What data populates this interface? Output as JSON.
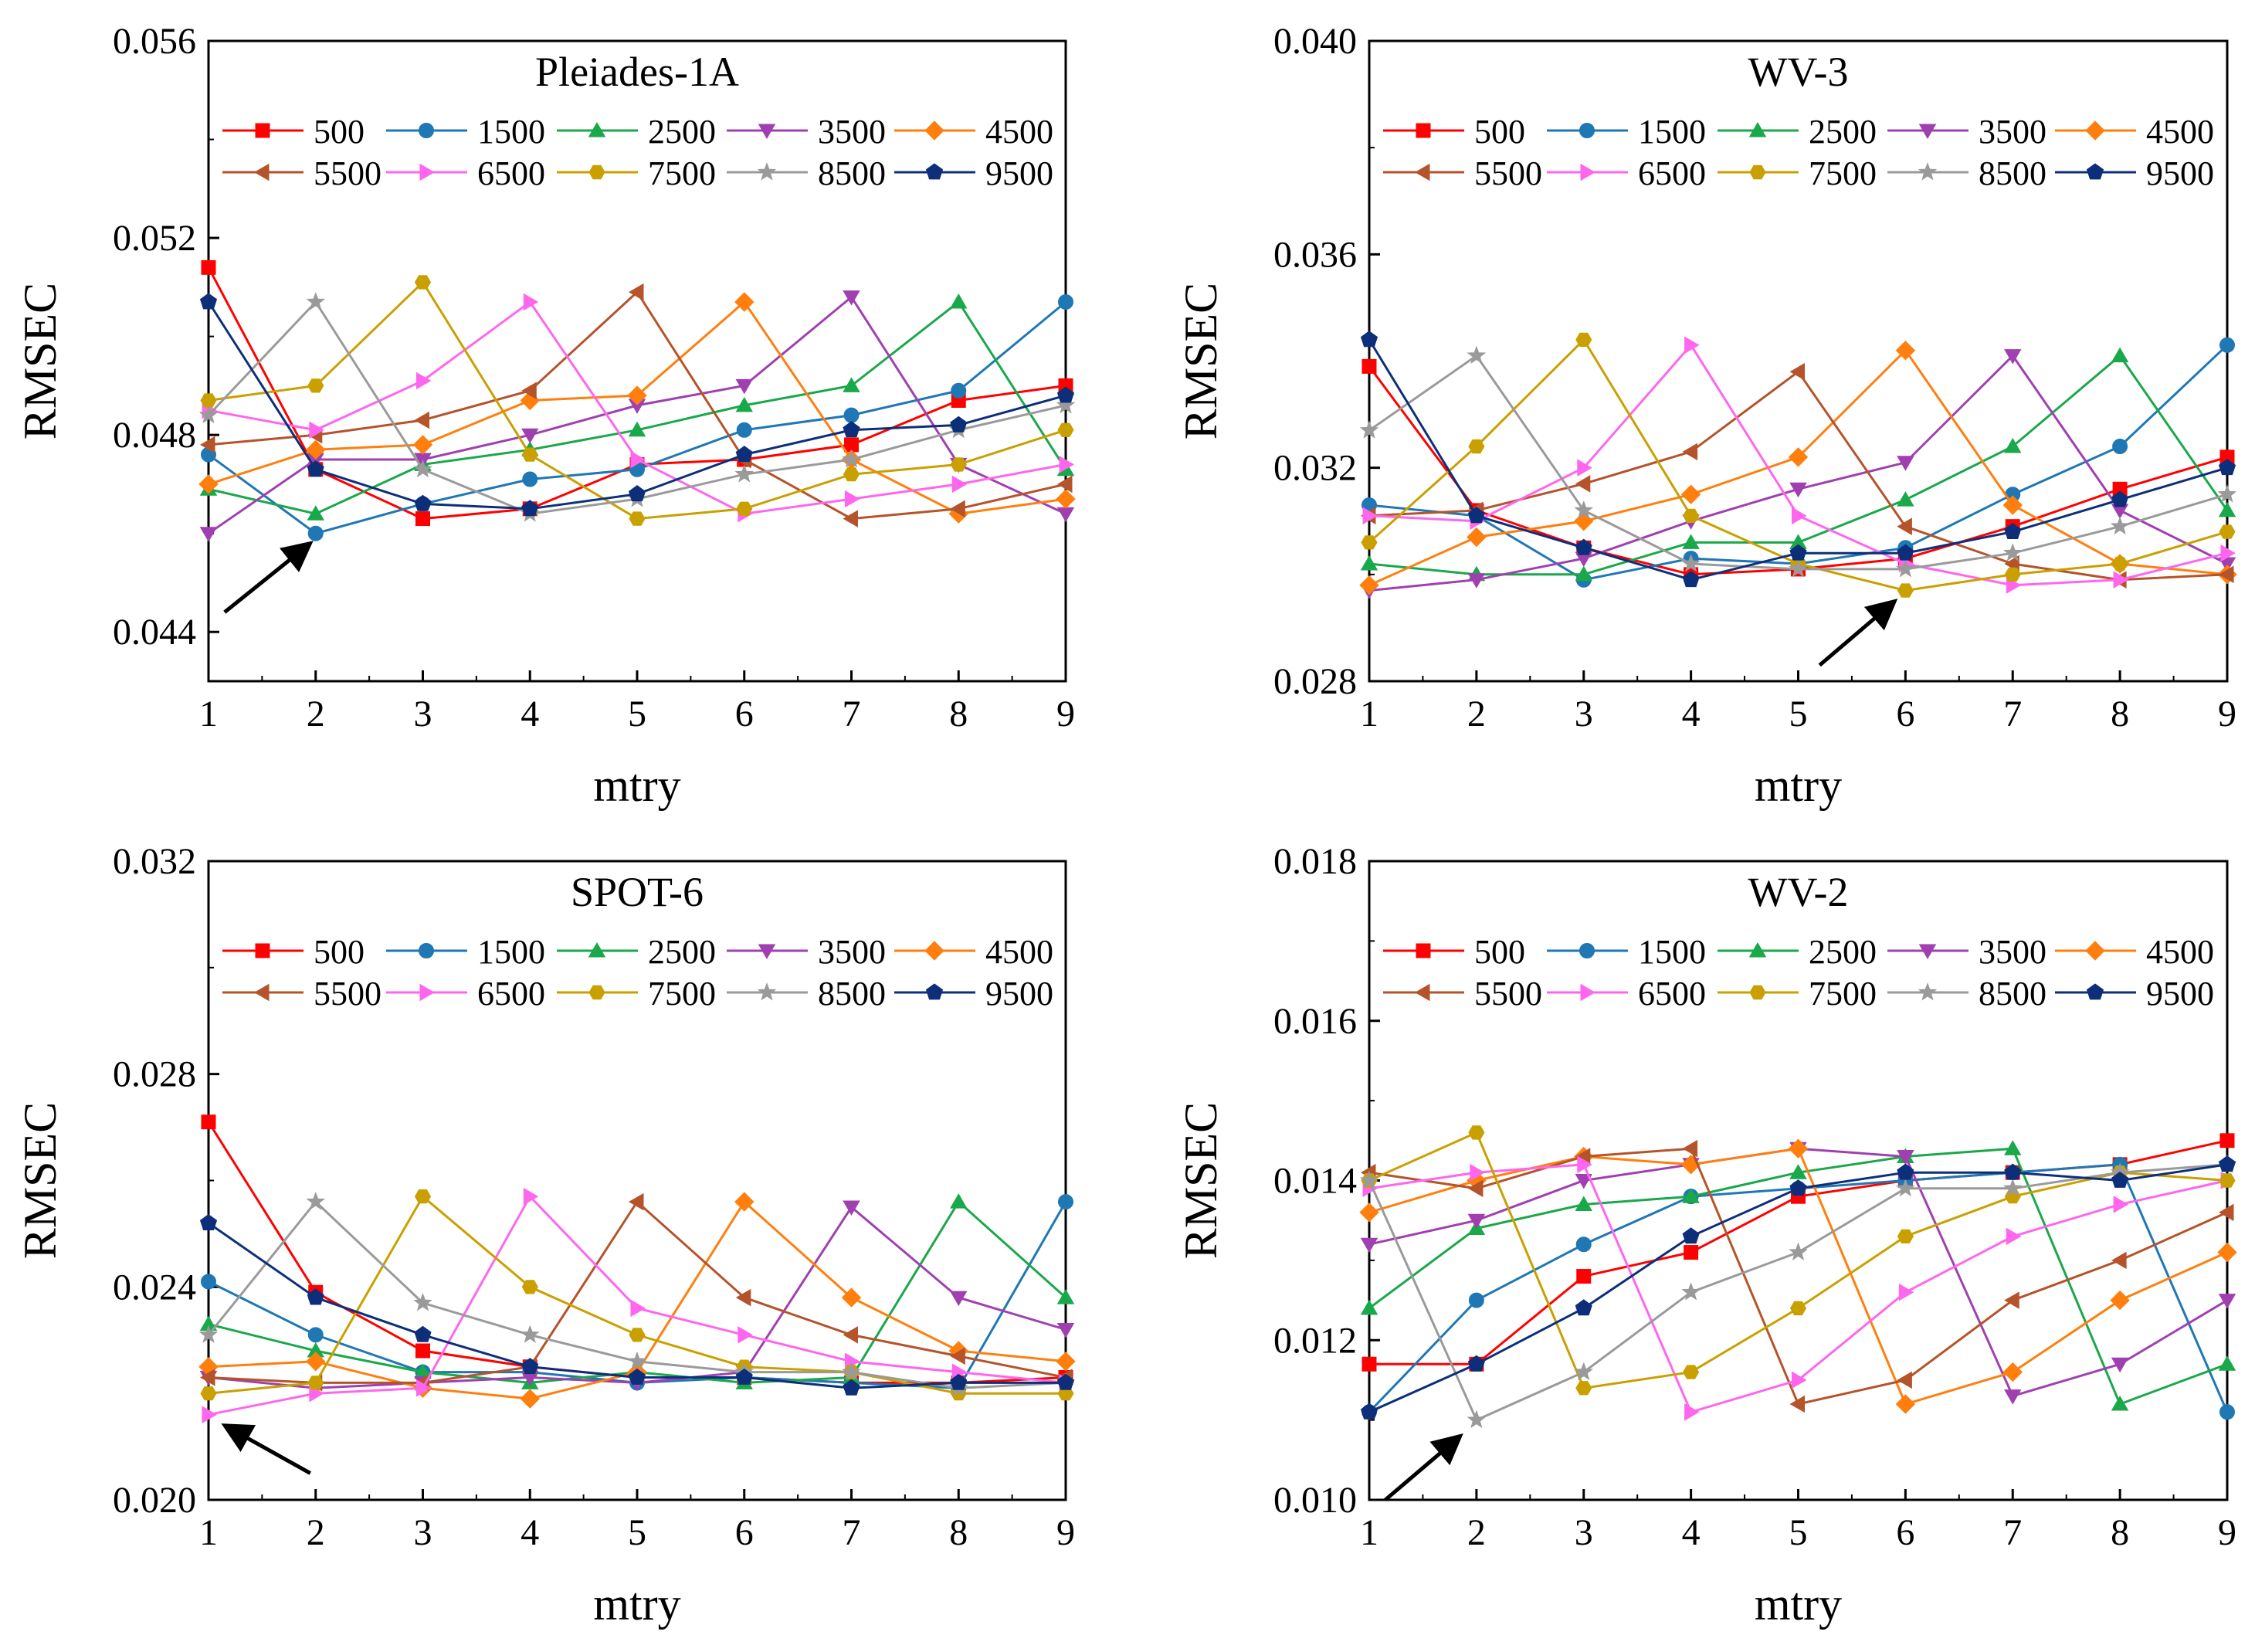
{
  "figure": {
    "legend_labels": [
      "500",
      "1500",
      "2500",
      "3500",
      "4500",
      "5500",
      "6500",
      "7500",
      "8500",
      "9500"
    ],
    "series_colors": [
      "#ff0000",
      "#1f77b4",
      "#19a84a",
      "#a040b0",
      "#ff7f0e",
      "#b5532a",
      "#ff66ee",
      "#c9a000",
      "#9a9a9a",
      "#0d2f7a"
    ],
    "series_markers": [
      "square",
      "circle",
      "triangle-up",
      "triangle-down",
      "diamond",
      "triangle-left",
      "triangle-right",
      "hexagon",
      "star",
      "pentagon"
    ],
    "arrow_color": "#000000"
  },
  "chart_data": [
    {
      "type": "line",
      "title": "Pleiades-1A",
      "xlabel": "mtry",
      "ylabel": "RMSEC",
      "x": [
        1,
        2,
        3,
        4,
        5,
        6,
        7,
        8,
        9
      ],
      "xlim": [
        1,
        9
      ],
      "ylim": [
        0.043,
        0.056
      ],
      "yticks": [
        0.044,
        0.048,
        0.052,
        0.056
      ],
      "ytick_labels": [
        "0.044",
        "0.048",
        "0.052",
        "0.056"
      ],
      "xtick_labels": [
        "1",
        "2",
        "3",
        "4",
        "5",
        "6",
        "7",
        "8",
        "9"
      ],
      "arrow": {
        "from": [
          1.15,
          0.0444
        ],
        "to": [
          1.95,
          0.0458
        ]
      },
      "series": [
        {
          "name": "500",
          "values": [
            0.0514,
            0.0473,
            0.0463,
            0.0465,
            0.0474,
            0.0475,
            0.0478,
            0.0487,
            0.049
          ]
        },
        {
          "name": "1500",
          "values": [
            0.0476,
            0.046,
            0.0466,
            0.0471,
            0.0473,
            0.0481,
            0.0484,
            0.0489,
            0.0507
          ]
        },
        {
          "name": "2500",
          "values": [
            0.0469,
            0.0464,
            0.0474,
            0.0477,
            0.0481,
            0.0486,
            0.049,
            0.0507,
            0.0473
          ]
        },
        {
          "name": "3500",
          "values": [
            0.046,
            0.0475,
            0.0475,
            0.048,
            0.0486,
            0.049,
            0.0508,
            0.0474,
            0.0464
          ]
        },
        {
          "name": "4500",
          "values": [
            0.047,
            0.0477,
            0.0478,
            0.0487,
            0.0488,
            0.0507,
            0.0475,
            0.0464,
            0.0467
          ]
        },
        {
          "name": "5500",
          "values": [
            0.0478,
            0.048,
            0.0483,
            0.0489,
            0.0509,
            0.0475,
            0.0463,
            0.0465,
            0.047
          ]
        },
        {
          "name": "6500",
          "values": [
            0.0485,
            0.0481,
            0.0491,
            0.0507,
            0.0475,
            0.0464,
            0.0467,
            0.047,
            0.0474
          ]
        },
        {
          "name": "7500",
          "values": [
            0.0487,
            0.049,
            0.0511,
            0.0476,
            0.0463,
            0.0465,
            0.0472,
            0.0474,
            0.0481
          ]
        },
        {
          "name": "8500",
          "values": [
            0.0484,
            0.0507,
            0.0473,
            0.0464,
            0.0467,
            0.0472,
            0.0475,
            0.0481,
            0.0486
          ]
        },
        {
          "name": "9500",
          "values": [
            0.0507,
            0.0473,
            0.0466,
            0.0465,
            0.0468,
            0.0476,
            0.0481,
            0.0482,
            0.0488
          ]
        }
      ]
    },
    {
      "type": "line",
      "title": "WV-3",
      "xlabel": "mtry",
      "ylabel": "RMSEC",
      "x": [
        1,
        2,
        3,
        4,
        5,
        6,
        7,
        8,
        9
      ],
      "xlim": [
        1,
        9
      ],
      "ylim": [
        0.028,
        0.04
      ],
      "yticks": [
        0.028,
        0.032,
        0.036,
        0.04
      ],
      "ytick_labels": [
        "0.028",
        "0.032",
        "0.036",
        "0.040"
      ],
      "xtick_labels": [
        "1",
        "2",
        "3",
        "4",
        "5",
        "6",
        "7",
        "8",
        "9"
      ],
      "arrow": {
        "from": [
          5.2,
          0.0283
        ],
        "to": [
          5.9,
          0.0295
        ]
      },
      "series": [
        {
          "name": "500",
          "values": [
            0.0339,
            0.0312,
            0.0305,
            0.03,
            0.0301,
            0.0303,
            0.0309,
            0.0316,
            0.0322
          ]
        },
        {
          "name": "1500",
          "values": [
            0.0313,
            0.0311,
            0.0299,
            0.0303,
            0.0302,
            0.0305,
            0.0315,
            0.0324,
            0.0343
          ]
        },
        {
          "name": "2500",
          "values": [
            0.0302,
            0.03,
            0.03,
            0.0306,
            0.0306,
            0.0314,
            0.0324,
            0.0341,
            0.0312
          ]
        },
        {
          "name": "3500",
          "values": [
            0.0297,
            0.0299,
            0.0303,
            0.031,
            0.0316,
            0.0321,
            0.0341,
            0.0312,
            0.0302
          ]
        },
        {
          "name": "4500",
          "values": [
            0.0298,
            0.0307,
            0.031,
            0.0315,
            0.0322,
            0.0342,
            0.0313,
            0.0302,
            0.03
          ]
        },
        {
          "name": "5500",
          "values": [
            0.0311,
            0.0312,
            0.0317,
            0.0323,
            0.0338,
            0.0309,
            0.0302,
            0.0299,
            0.03
          ]
        },
        {
          "name": "6500",
          "values": [
            0.0311,
            0.031,
            0.032,
            0.0343,
            0.0311,
            0.0302,
            0.0298,
            0.0299,
            0.0304
          ]
        },
        {
          "name": "7500",
          "values": [
            0.0306,
            0.0324,
            0.0344,
            0.0311,
            0.0302,
            0.0297,
            0.03,
            0.0302,
            0.0308
          ]
        },
        {
          "name": "8500",
          "values": [
            0.0327,
            0.0341,
            0.0312,
            0.0302,
            0.0301,
            0.0301,
            0.0304,
            0.0309,
            0.0315
          ]
        },
        {
          "name": "9500",
          "values": [
            0.0344,
            0.0311,
            0.0305,
            0.0299,
            0.0304,
            0.0304,
            0.0308,
            0.0314,
            0.032
          ]
        }
      ]
    },
    {
      "type": "line",
      "title": "SPOT-6",
      "xlabel": "mtry",
      "ylabel": "RMSEC",
      "x": [
        1,
        2,
        3,
        4,
        5,
        6,
        7,
        8,
        9
      ],
      "xlim": [
        1,
        9
      ],
      "ylim": [
        0.02,
        0.032
      ],
      "yticks": [
        0.02,
        0.024,
        0.028,
        0.032
      ],
      "ytick_labels": [
        "0.020",
        "0.024",
        "0.028",
        "0.032"
      ],
      "xtick_labels": [
        "1",
        "2",
        "3",
        "4",
        "5",
        "6",
        "7",
        "8",
        "9"
      ],
      "arrow": {
        "from": [
          1.95,
          0.0205
        ],
        "to": [
          1.15,
          0.0214
        ]
      },
      "series": [
        {
          "name": "500",
          "values": [
            0.0271,
            0.0239,
            0.0228,
            0.0225,
            0.0223,
            0.0223,
            0.0222,
            0.0222,
            0.0223
          ]
        },
        {
          "name": "1500",
          "values": [
            0.0241,
            0.0231,
            0.0224,
            0.0224,
            0.0222,
            0.0223,
            0.0222,
            0.0221,
            0.0256
          ]
        },
        {
          "name": "2500",
          "values": [
            0.0233,
            0.0228,
            0.0224,
            0.0222,
            0.0224,
            0.0222,
            0.0223,
            0.0256,
            0.0238
          ]
        },
        {
          "name": "3500",
          "values": [
            0.0223,
            0.0221,
            0.0222,
            0.0223,
            0.0222,
            0.0224,
            0.0255,
            0.0238,
            0.0232
          ]
        },
        {
          "name": "4500",
          "values": [
            0.0225,
            0.0226,
            0.0221,
            0.0219,
            0.0224,
            0.0256,
            0.0238,
            0.0228,
            0.0226
          ]
        },
        {
          "name": "5500",
          "values": [
            0.0223,
            0.0222,
            0.0222,
            0.0225,
            0.0256,
            0.0238,
            0.0231,
            0.0227,
            0.0223
          ]
        },
        {
          "name": "6500",
          "values": [
            0.0216,
            0.022,
            0.0221,
            0.0257,
            0.0236,
            0.0231,
            0.0226,
            0.0224,
            0.0222
          ]
        },
        {
          "name": "7500",
          "values": [
            0.022,
            0.0222,
            0.0257,
            0.024,
            0.0231,
            0.0225,
            0.0224,
            0.022,
            0.022
          ]
        },
        {
          "name": "8500",
          "values": [
            0.0231,
            0.0256,
            0.0237,
            0.0231,
            0.0226,
            0.0224,
            0.0224,
            0.0221,
            0.0222
          ]
        },
        {
          "name": "9500",
          "values": [
            0.0252,
            0.0238,
            0.0231,
            0.0225,
            0.0223,
            0.0223,
            0.0221,
            0.0222,
            0.0222
          ]
        }
      ]
    },
    {
      "type": "line",
      "title": "WV-2",
      "xlabel": "mtry",
      "ylabel": "RMSEC",
      "x": [
        1,
        2,
        3,
        4,
        5,
        6,
        7,
        8,
        9
      ],
      "xlim": [
        1,
        9
      ],
      "ylim": [
        0.01,
        0.018
      ],
      "yticks": [
        0.01,
        0.012,
        0.014,
        0.016,
        0.018
      ],
      "ytick_labels": [
        "0.010",
        "0.012",
        "0.014",
        "0.016",
        "0.018"
      ],
      "xtick_labels": [
        "1",
        "2",
        "3",
        "4",
        "5",
        "6",
        "7",
        "8",
        "9"
      ],
      "arrow": {
        "from": [
          1.15,
          0.01
        ],
        "to": [
          1.85,
          0.0108
        ]
      },
      "series": [
        {
          "name": "500",
          "values": [
            0.0117,
            0.0117,
            0.0128,
            0.0131,
            0.0138,
            0.014,
            0.0141,
            0.0142,
            0.0145
          ]
        },
        {
          "name": "1500",
          "values": [
            0.0111,
            0.0125,
            0.0132,
            0.0138,
            0.0139,
            0.014,
            0.0141,
            0.0142,
            0.0111
          ]
        },
        {
          "name": "2500",
          "values": [
            0.0124,
            0.0134,
            0.0137,
            0.0138,
            0.0141,
            0.0143,
            0.0144,
            0.0112,
            0.0117
          ]
        },
        {
          "name": "3500",
          "values": [
            0.0132,
            0.0135,
            0.014,
            0.0142,
            0.0144,
            0.0143,
            0.0113,
            0.0117,
            0.0125
          ]
        },
        {
          "name": "4500",
          "values": [
            0.0136,
            0.014,
            0.0143,
            0.0142,
            0.0144,
            0.0112,
            0.0116,
            0.0125,
            0.0131
          ]
        },
        {
          "name": "5500",
          "values": [
            0.0141,
            0.0139,
            0.0143,
            0.0144,
            0.0112,
            0.0115,
            0.0125,
            0.013,
            0.0136
          ]
        },
        {
          "name": "6500",
          "values": [
            0.0139,
            0.0141,
            0.0142,
            0.0111,
            0.0115,
            0.0126,
            0.0133,
            0.0137,
            0.014
          ]
        },
        {
          "name": "7500",
          "values": [
            0.014,
            0.0146,
            0.0114,
            0.0116,
            0.0124,
            0.0133,
            0.0138,
            0.0141,
            0.014
          ]
        },
        {
          "name": "8500",
          "values": [
            0.014,
            0.011,
            0.0116,
            0.0126,
            0.0131,
            0.0139,
            0.0139,
            0.0141,
            0.0142
          ]
        },
        {
          "name": "9500",
          "values": [
            0.0111,
            0.0117,
            0.0124,
            0.0133,
            0.0139,
            0.0141,
            0.0141,
            0.014,
            0.0142
          ]
        }
      ]
    }
  ]
}
